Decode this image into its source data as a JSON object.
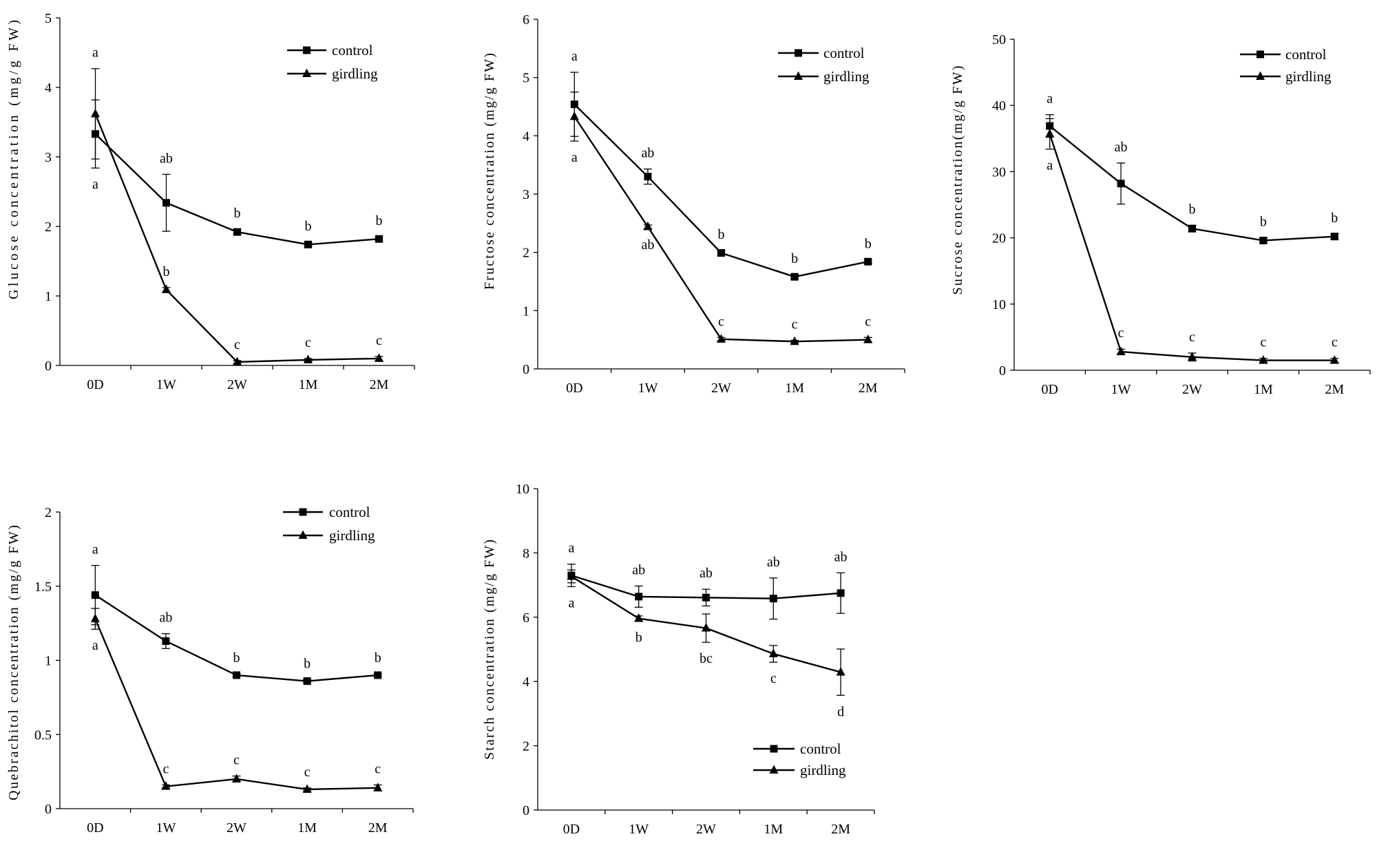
{
  "colors": {
    "ink": "#000000",
    "background": "#ffffff"
  },
  "chart_data": [
    {
      "type": "line",
      "ylabel": "Glucose concentration (mg/g FW)",
      "xlabel": "",
      "categories": [
        "0D",
        "1W",
        "2W",
        "1M",
        "2M"
      ],
      "ylim": [
        0,
        5
      ],
      "yticks": [
        0,
        1,
        2,
        3,
        4,
        5
      ],
      "legend_position": "top-right",
      "series": [
        {
          "name": "control",
          "marker": "square",
          "values": [
            3.33,
            2.34,
            1.92,
            1.74,
            1.82
          ],
          "errors": [
            0.49,
            0.41,
            0.04,
            0.03,
            0.03
          ],
          "labels": [
            "a",
            "ab",
            "b",
            "b",
            "b"
          ],
          "label_side": [
            "top",
            "above",
            "above",
            "above",
            "above"
          ]
        },
        {
          "name": "girdling",
          "marker": "triangle",
          "values": [
            3.62,
            1.09,
            0.05,
            0.08,
            0.1
          ],
          "errors": [
            0.65,
            0.03,
            0.02,
            0.02,
            0.03
          ],
          "labels": [
            "a",
            "b",
            "c",
            "c",
            "c"
          ],
          "label_side": [
            "bottom",
            "above",
            "above",
            "above",
            "above"
          ]
        }
      ]
    },
    {
      "type": "line",
      "ylabel": "Fructose concentration (mg/g FW)",
      "xlabel": "",
      "categories": [
        "0D",
        "1W",
        "2W",
        "1M",
        "2M"
      ],
      "ylim": [
        0,
        6
      ],
      "yticks": [
        0,
        1,
        2,
        3,
        4,
        5,
        6
      ],
      "legend_position": "top-right",
      "series": [
        {
          "name": "control",
          "marker": "square",
          "values": [
            4.54,
            3.3,
            1.99,
            1.58,
            1.84
          ],
          "errors": [
            0.55,
            0.13,
            0.04,
            0.04,
            0.03
          ],
          "labels": [
            "a",
            "ab",
            "b",
            "b",
            "b"
          ],
          "label_side": [
            "top",
            "above",
            "above",
            "above",
            "above"
          ]
        },
        {
          "name": "girdling",
          "marker": "triangle",
          "values": [
            4.33,
            2.44,
            0.51,
            0.47,
            0.5
          ],
          "errors": [
            0.42,
            0.03,
            0.03,
            0.02,
            0.04
          ],
          "labels": [
            "a",
            "ab",
            "c",
            "c",
            "c"
          ],
          "label_side": [
            "bottom",
            "below",
            "above",
            "above",
            "above"
          ]
        }
      ]
    },
    {
      "type": "line",
      "ylabel": "Sucrose concentration(mg/g FW)",
      "xlabel": "",
      "categories": [
        "0D",
        "1W",
        "2W",
        "1M",
        "2M"
      ],
      "ylim": [
        0,
        50
      ],
      "yticks": [
        0,
        10,
        20,
        30,
        40,
        50
      ],
      "legend_position": "top-right",
      "series": [
        {
          "name": "control",
          "marker": "square",
          "values": [
            36.9,
            28.2,
            21.4,
            19.6,
            20.2
          ],
          "errors": [
            1.7,
            3.1,
            0.5,
            0.4,
            0.4
          ],
          "labels": [
            "a",
            "ab",
            "b",
            "b",
            "b"
          ],
          "label_side": [
            "top",
            "above",
            "above",
            "above",
            "above"
          ]
        },
        {
          "name": "girdling",
          "marker": "triangle",
          "values": [
            35.7,
            2.8,
            2.0,
            1.5,
            1.5
          ],
          "errors": [
            2.3,
            0.4,
            0.6,
            0.3,
            0.3
          ],
          "labels": [
            "a",
            "c",
            "c",
            "c",
            "c"
          ],
          "label_side": [
            "bottom",
            "above",
            "above",
            "above",
            "above"
          ]
        }
      ]
    },
    {
      "type": "line",
      "ylabel": "Quebrachitol  concentration (mg/g FW)",
      "xlabel": "",
      "categories": [
        "0D",
        "1W",
        "2W",
        "1M",
        "2M"
      ],
      "ylim": [
        0,
        2
      ],
      "yticks": [
        0,
        0.5,
        1,
        1.5,
        2
      ],
      "legend_position": "top-right",
      "series": [
        {
          "name": "control",
          "marker": "square",
          "values": [
            1.44,
            1.13,
            0.9,
            0.86,
            0.9
          ],
          "errors": [
            0.2,
            0.05,
            0.01,
            0.01,
            0.01
          ],
          "labels": [
            "a",
            "ab",
            "b",
            "b",
            "b"
          ],
          "label_side": [
            "top",
            "above",
            "above",
            "above",
            "above"
          ]
        },
        {
          "name": "girdling",
          "marker": "triangle",
          "values": [
            1.28,
            0.15,
            0.2,
            0.13,
            0.14
          ],
          "errors": [
            0.07,
            0.01,
            0.02,
            0.01,
            0.02
          ],
          "labels": [
            "a",
            "c",
            "c",
            "c",
            "c"
          ],
          "label_side": [
            "bottom",
            "above",
            "above",
            "above",
            "above"
          ]
        }
      ]
    },
    {
      "type": "line",
      "ylabel": "Starch concentration (mg/g FW)",
      "xlabel": "",
      "categories": [
        "0D",
        "1W",
        "2W",
        "1M",
        "2M"
      ],
      "ylim": [
        0,
        10
      ],
      "yticks": [
        0,
        2,
        4,
        6,
        8,
        10
      ],
      "legend_position": "bottom-right",
      "series": [
        {
          "name": "control",
          "marker": "square",
          "values": [
            7.3,
            6.64,
            6.61,
            6.58,
            6.75
          ],
          "errors": [
            0.35,
            0.33,
            0.26,
            0.64,
            0.63
          ],
          "labels": [
            "a",
            "ab",
            "ab",
            "ab",
            "ab"
          ],
          "label_side": [
            "top",
            "above",
            "above",
            "above",
            "above"
          ]
        },
        {
          "name": "girdling",
          "marker": "triangle",
          "values": [
            7.27,
            5.96,
            5.66,
            4.86,
            4.29
          ],
          "errors": [
            0.2,
            0.08,
            0.44,
            0.26,
            0.72
          ],
          "labels": [
            "a",
            "b",
            "bc",
            "c",
            "d"
          ],
          "label_side": [
            "bottom",
            "below",
            "below",
            "below",
            "below"
          ]
        }
      ]
    }
  ]
}
